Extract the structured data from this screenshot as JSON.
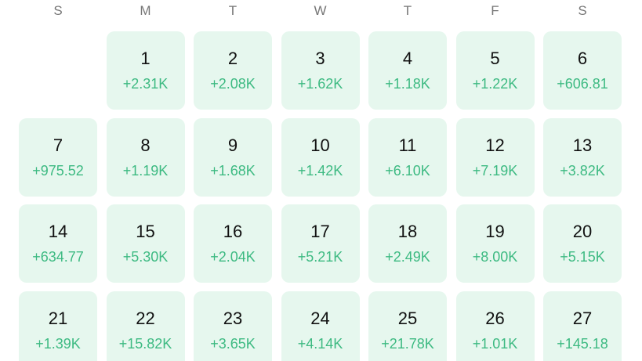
{
  "weekdays": [
    "S",
    "M",
    "T",
    "W",
    "T",
    "F",
    "S"
  ],
  "weeks": [
    [
      null,
      {
        "day": 1,
        "change": "+2.31K"
      },
      {
        "day": 2,
        "change": "+2.08K"
      },
      {
        "day": 3,
        "change": "+1.62K"
      },
      {
        "day": 4,
        "change": "+1.18K"
      },
      {
        "day": 5,
        "change": "+1.22K"
      },
      {
        "day": 6,
        "change": "+606.81"
      }
    ],
    [
      {
        "day": 7,
        "change": "+975.52"
      },
      {
        "day": 8,
        "change": "+1.19K"
      },
      {
        "day": 9,
        "change": "+1.68K"
      },
      {
        "day": 10,
        "change": "+1.42K"
      },
      {
        "day": 11,
        "change": "+6.10K"
      },
      {
        "day": 12,
        "change": "+7.19K"
      },
      {
        "day": 13,
        "change": "+3.82K"
      }
    ],
    [
      {
        "day": 14,
        "change": "+634.77"
      },
      {
        "day": 15,
        "change": "+5.30K"
      },
      {
        "day": 16,
        "change": "+2.04K"
      },
      {
        "day": 17,
        "change": "+5.21K"
      },
      {
        "day": 18,
        "change": "+2.49K"
      },
      {
        "day": 19,
        "change": "+8.00K"
      },
      {
        "day": 20,
        "change": "+5.15K"
      }
    ],
    [
      {
        "day": 21,
        "change": "+1.39K"
      },
      {
        "day": 22,
        "change": "+15.82K"
      },
      {
        "day": 23,
        "change": "+3.65K"
      },
      {
        "day": 24,
        "change": "+4.14K"
      },
      {
        "day": 25,
        "change": "+21.78K"
      },
      {
        "day": 26,
        "change": "+1.01K"
      },
      {
        "day": 27,
        "change": "+145.18"
      }
    ]
  ]
}
